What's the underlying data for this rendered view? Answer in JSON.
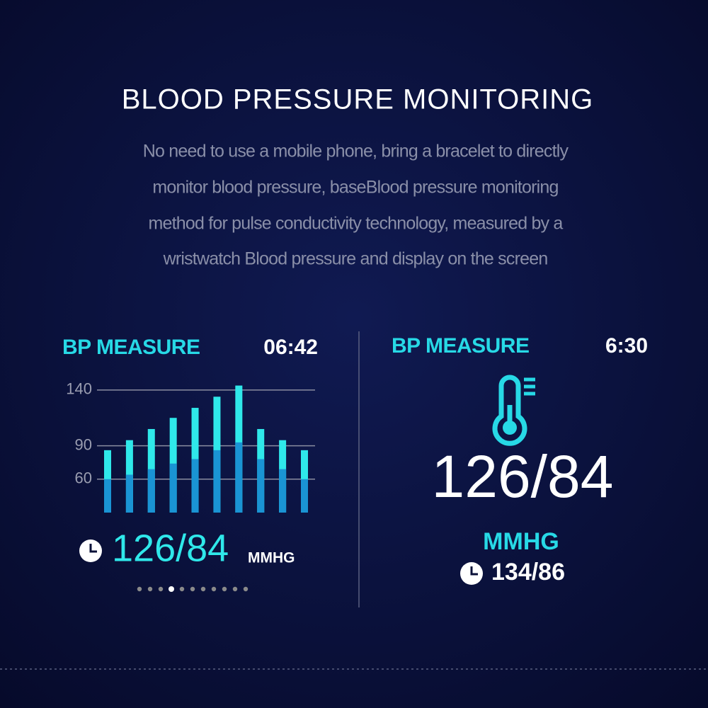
{
  "header": {
    "title": "BLOOD PRESSURE MONITORING",
    "lines": [
      "No need to use a mobile phone, bring a bracelet to directly",
      "monitor blood pressure, baseBlood pressure monitoring",
      "method for pulse conductivity technology, measured by a",
      "wristwatch Blood pressure and display on the screen"
    ]
  },
  "left_panel": {
    "label": "BP MEASURE",
    "time": "06:42",
    "reading": "126/84",
    "unit": "MMHG"
  },
  "right_panel": {
    "label": "BP MEASURE",
    "time": "6:30",
    "reading": "126/84",
    "unit": "MMHG",
    "previous": "134/86"
  },
  "chart_data": {
    "type": "bar",
    "ylim": [
      30,
      145
    ],
    "yticks": [
      140,
      90,
      60
    ],
    "grid": true,
    "series": [
      {
        "color": "#2fe8ea",
        "values": [
          86,
          95,
          105,
          115,
          124,
          134,
          144,
          105,
          95,
          86
        ]
      },
      {
        "color": "#1a94d4",
        "values": [
          60,
          64,
          69,
          74,
          78,
          86,
          93,
          78,
          69,
          60
        ]
      }
    ]
  }
}
